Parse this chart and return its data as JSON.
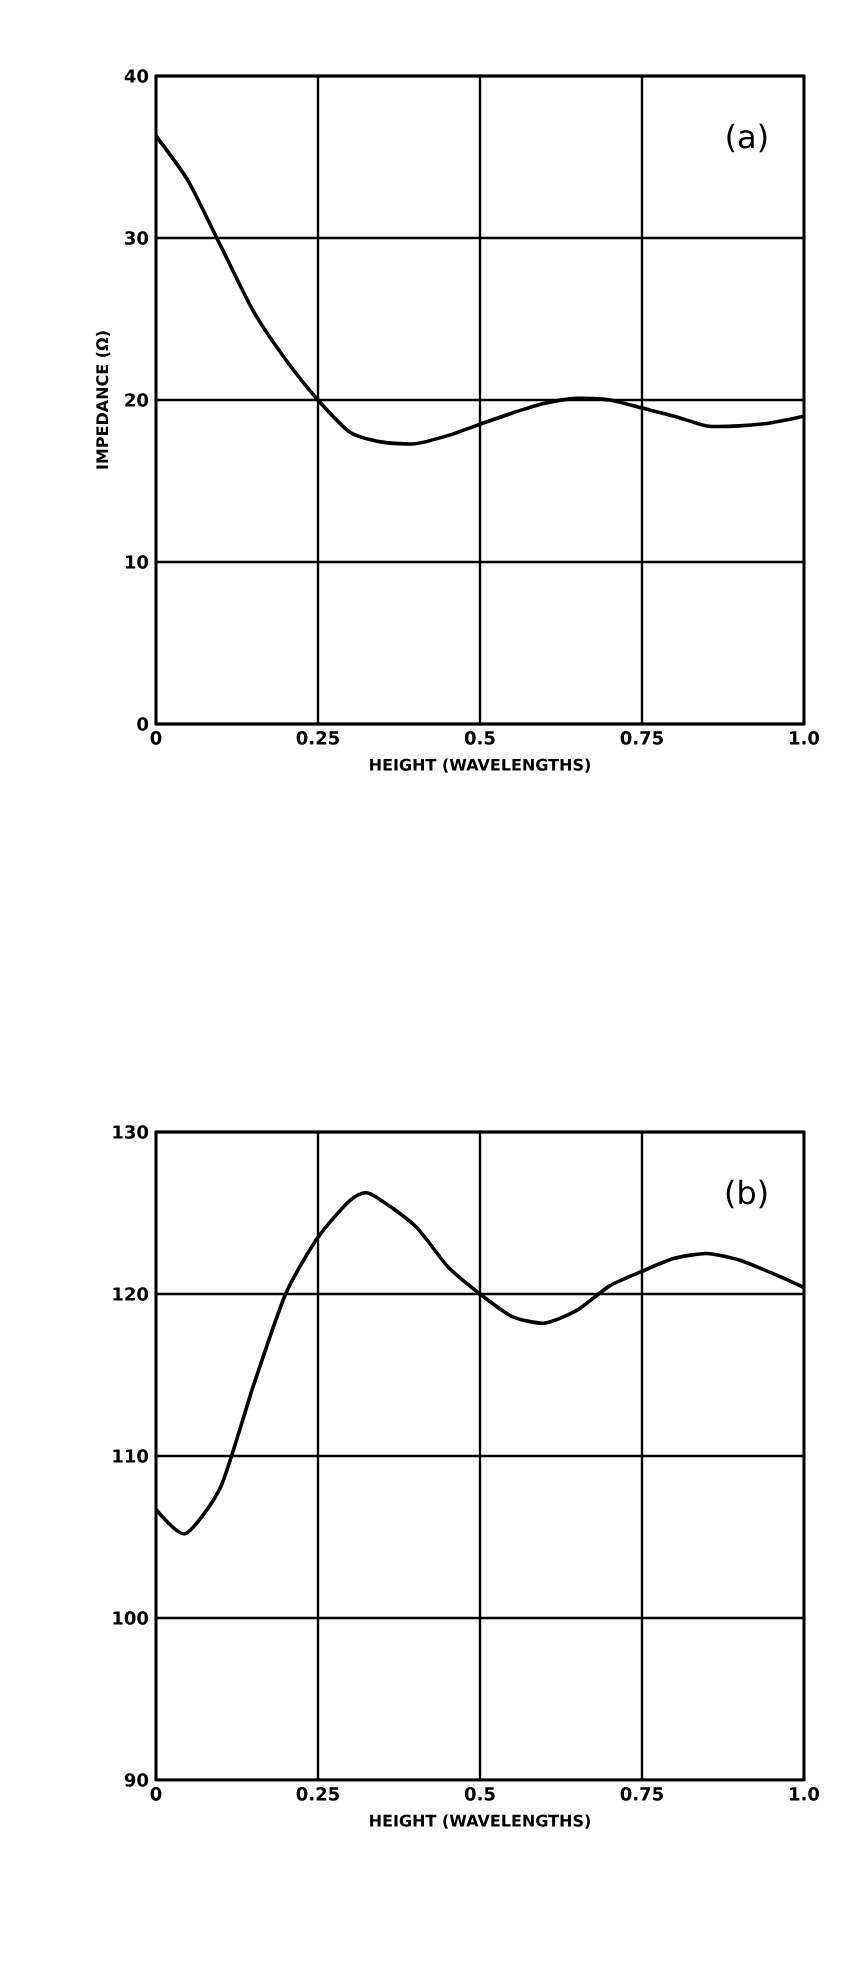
{
  "chart_data": [
    {
      "type": "line",
      "xlabel": "HEIGHT (WAVELENGTHS)",
      "ylabel": "IMPEDANCE (Ω)",
      "annotations": [
        "(a)"
      ],
      "x": [
        0,
        0.05,
        0.1,
        0.15,
        0.2,
        0.25,
        0.3,
        0.35,
        0.4,
        0.45,
        0.5,
        0.55,
        0.6,
        0.65,
        0.7,
        0.75,
        0.8,
        0.85,
        0.9,
        0.95,
        1.0
      ],
      "series": [
        {
          "color": "#000000",
          "values": [
            36.3,
            33.5,
            29.5,
            25.5,
            22.5,
            20,
            18,
            17.4,
            17.3,
            17.8,
            18.5,
            19.2,
            19.8,
            20.1,
            20,
            19.5,
            19,
            18.4,
            18.4,
            18.6,
            19
          ]
        }
      ],
      "xlim": [
        0,
        1
      ],
      "ylim": [
        0,
        40
      ],
      "xticks": [
        0,
        0.25,
        0.5,
        0.75,
        {
          "value": 1,
          "label": "1.0"
        }
      ],
      "yticks": [
        0,
        10,
        20,
        30,
        40
      ],
      "grid": true,
      "marker": "none",
      "line_style": "solid"
    },
    {
      "type": "line",
      "xlabel": "HEIGHT (WAVELENGTHS)",
      "annotations": [
        "(b)"
      ],
      "x": [
        0,
        0.045,
        0.1,
        0.15,
        0.2,
        0.25,
        0.3,
        0.33,
        0.4,
        0.45,
        0.5,
        0.55,
        0.6,
        0.65,
        0.7,
        0.75,
        0.8,
        0.85,
        0.9,
        0.95,
        1.0
      ],
      "series": [
        {
          "color": "#000000",
          "values": [
            106.7,
            105.2,
            108.1,
            114.3,
            120,
            123.5,
            125.8,
            126.2,
            124.2,
            121.7,
            120,
            118.6,
            118.2,
            119,
            120.5,
            121.4,
            122.2,
            122.5,
            122.1,
            121.3,
            120.4
          ]
        }
      ],
      "xlim": [
        0,
        1
      ],
      "ylim": [
        90,
        130
      ],
      "xticks": [
        0,
        0.25,
        0.5,
        0.75,
        {
          "value": 1,
          "label": "1.0"
        }
      ],
      "yticks": [
        90,
        100,
        110,
        120,
        130
      ],
      "grid": true,
      "marker": "none",
      "line_style": "solid"
    }
  ]
}
